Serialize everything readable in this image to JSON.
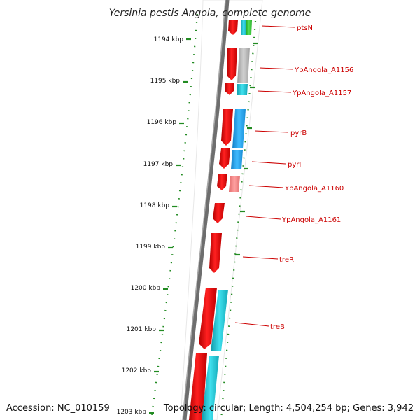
{
  "title": "Yersinia pestis Angola, complete genome",
  "footer": {
    "accession": "Accession: NC_010159",
    "topology": "Topology: circular; Length: 4,504,254 bp; Genes: 3,942"
  },
  "ticks": [
    "1194 kbp",
    "1195 kbp",
    "1196 kbp",
    "1197 kbp",
    "1198 kbp",
    "1199 kbp",
    "1200 kbp",
    "1201 kbp",
    "1202 kbp",
    "1203 kbp"
  ],
  "genes": [
    {
      "label": "ptsN"
    },
    {
      "label": "YpAngola_A1156"
    },
    {
      "label": "YpAngola_A1157"
    },
    {
      "label": "pyrB"
    },
    {
      "label": "pyrI"
    },
    {
      "label": "YpAngola_A1160"
    },
    {
      "label": "YpAngola_A1161"
    },
    {
      "label": "treR"
    },
    {
      "label": "treB"
    }
  ],
  "colors": {
    "cds": "#ee1111",
    "cds_light": "#f08080",
    "cog_cyan": "#22c8d8",
    "cog_blue": "#2aa6f0",
    "cog_gray": "#b4b4b4",
    "cog_green": "#33cc33",
    "backbone": "#7a7a7a",
    "dots": "#228b22",
    "label": "#cc0000"
  }
}
